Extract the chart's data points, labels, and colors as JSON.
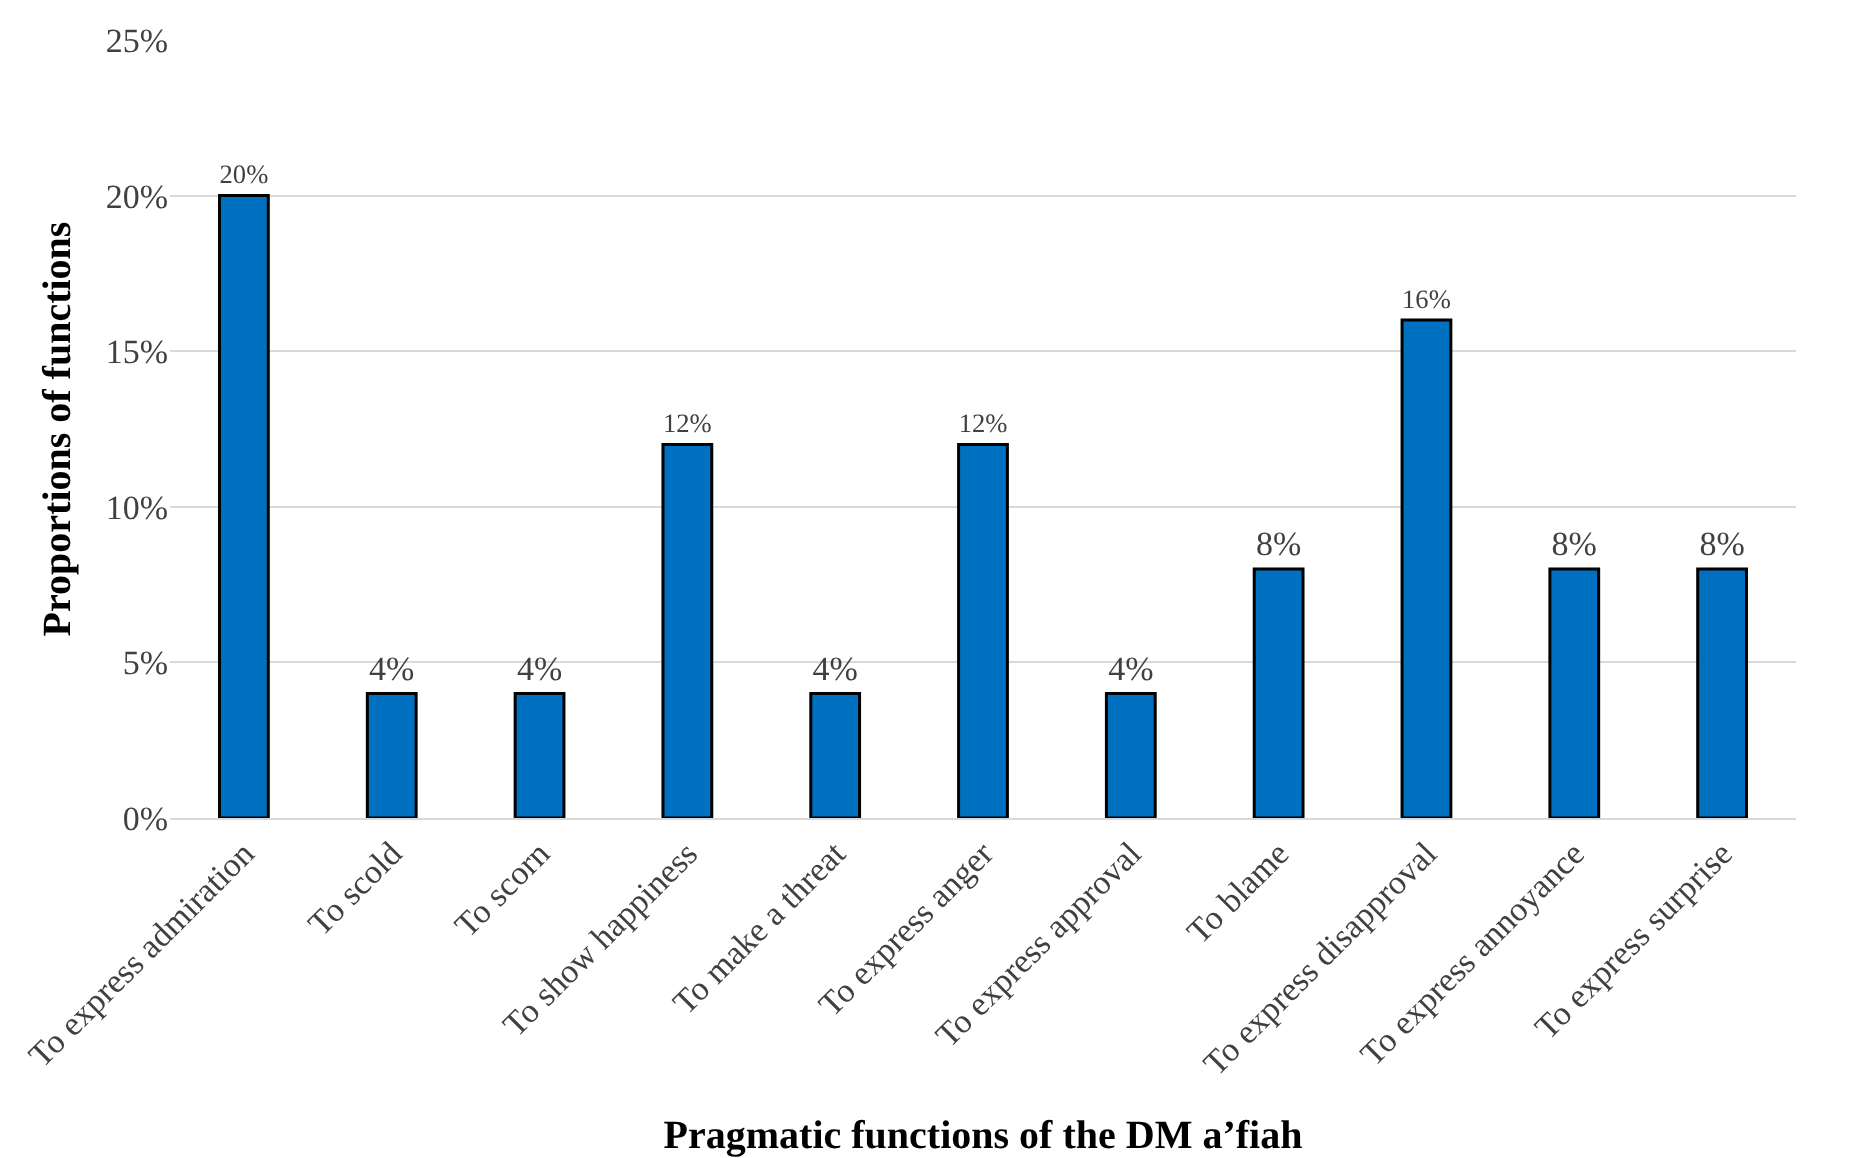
{
  "chart_data": {
    "type": "bar",
    "xlabel": "Pragmatic functions of the DM a’fiah",
    "ylabel": "Proportions of functions",
    "categories": [
      "To express admiration",
      "To scold",
      "To scorn",
      "To show happiness",
      "To make a threat",
      "To express anger",
      "To express approval",
      "To blame",
      "To express disapproval",
      "To express annoyance",
      "To express surprise"
    ],
    "values": [
      20,
      4,
      4,
      12,
      4,
      12,
      4,
      8,
      16,
      8,
      8
    ],
    "value_labels": [
      "20%",
      "4%",
      "4%",
      "12%",
      "4%",
      "12%",
      "4%",
      "8%",
      "16%",
      "8%",
      "8%"
    ],
    "color": "#0070c0",
    "ylim": [
      0,
      25
    ],
    "yticks": [
      {
        "value": 0,
        "label": "0%"
      },
      {
        "value": 5,
        "label": "5%"
      },
      {
        "value": 10,
        "label": "10%"
      },
      {
        "value": 15,
        "label": "15%"
      },
      {
        "value": 20,
        "label": "20%"
      },
      {
        "value": 25,
        "label": "25%"
      }
    ],
    "grid": "y",
    "legend": false
  }
}
